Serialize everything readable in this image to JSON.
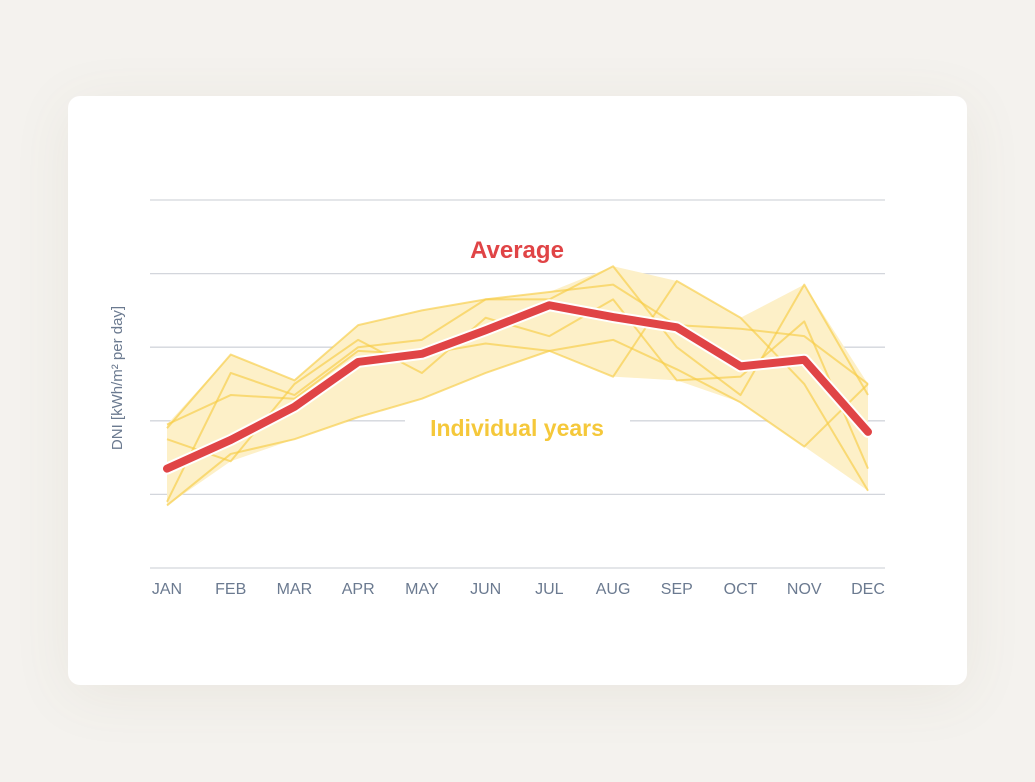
{
  "chart_data": {
    "type": "line",
    "title": "",
    "xlabel": "",
    "ylabel": "DNI [kWh/m² per day]",
    "categories": [
      "JAN",
      "FEB",
      "MAR",
      "APR",
      "MAY",
      "JUN",
      "JUL",
      "AUG",
      "SEP",
      "OCT",
      "NOV",
      "DEC"
    ],
    "ylim": [
      0,
      5
    ],
    "grid": true,
    "annotations": {
      "average": "Average",
      "individual": "Individual years"
    },
    "average": {
      "name": "Average",
      "color": "#e04446",
      "values": [
        1.35,
        1.74,
        2.19,
        2.8,
        2.91,
        3.23,
        3.57,
        3.41,
        3.27,
        2.74,
        2.83,
        1.85
      ]
    },
    "years_color": "#f7cd45",
    "years": [
      {
        "values": [
          1.9,
          2.9,
          2.55,
          3.3,
          3.5,
          3.65,
          3.75,
          3.85,
          3.3,
          3.25,
          3.15,
          2.5
        ]
      },
      {
        "values": [
          0.9,
          2.65,
          2.35,
          3.0,
          3.1,
          3.65,
          3.65,
          4.1,
          3.0,
          2.35,
          3.85,
          2.35
        ]
      },
      {
        "values": [
          1.75,
          1.45,
          2.5,
          3.1,
          2.65,
          3.4,
          3.15,
          3.65,
          2.55,
          2.6,
          3.35,
          1.35
        ]
      },
      {
        "values": [
          0.85,
          1.55,
          1.75,
          2.05,
          2.3,
          2.65,
          2.95,
          2.6,
          3.9,
          3.4,
          2.5,
          1.05
        ]
      },
      {
        "values": [
          1.95,
          2.35,
          2.3,
          2.95,
          2.9,
          3.05,
          2.95,
          3.1,
          2.7,
          2.25,
          1.65,
          2.5
        ]
      }
    ]
  }
}
